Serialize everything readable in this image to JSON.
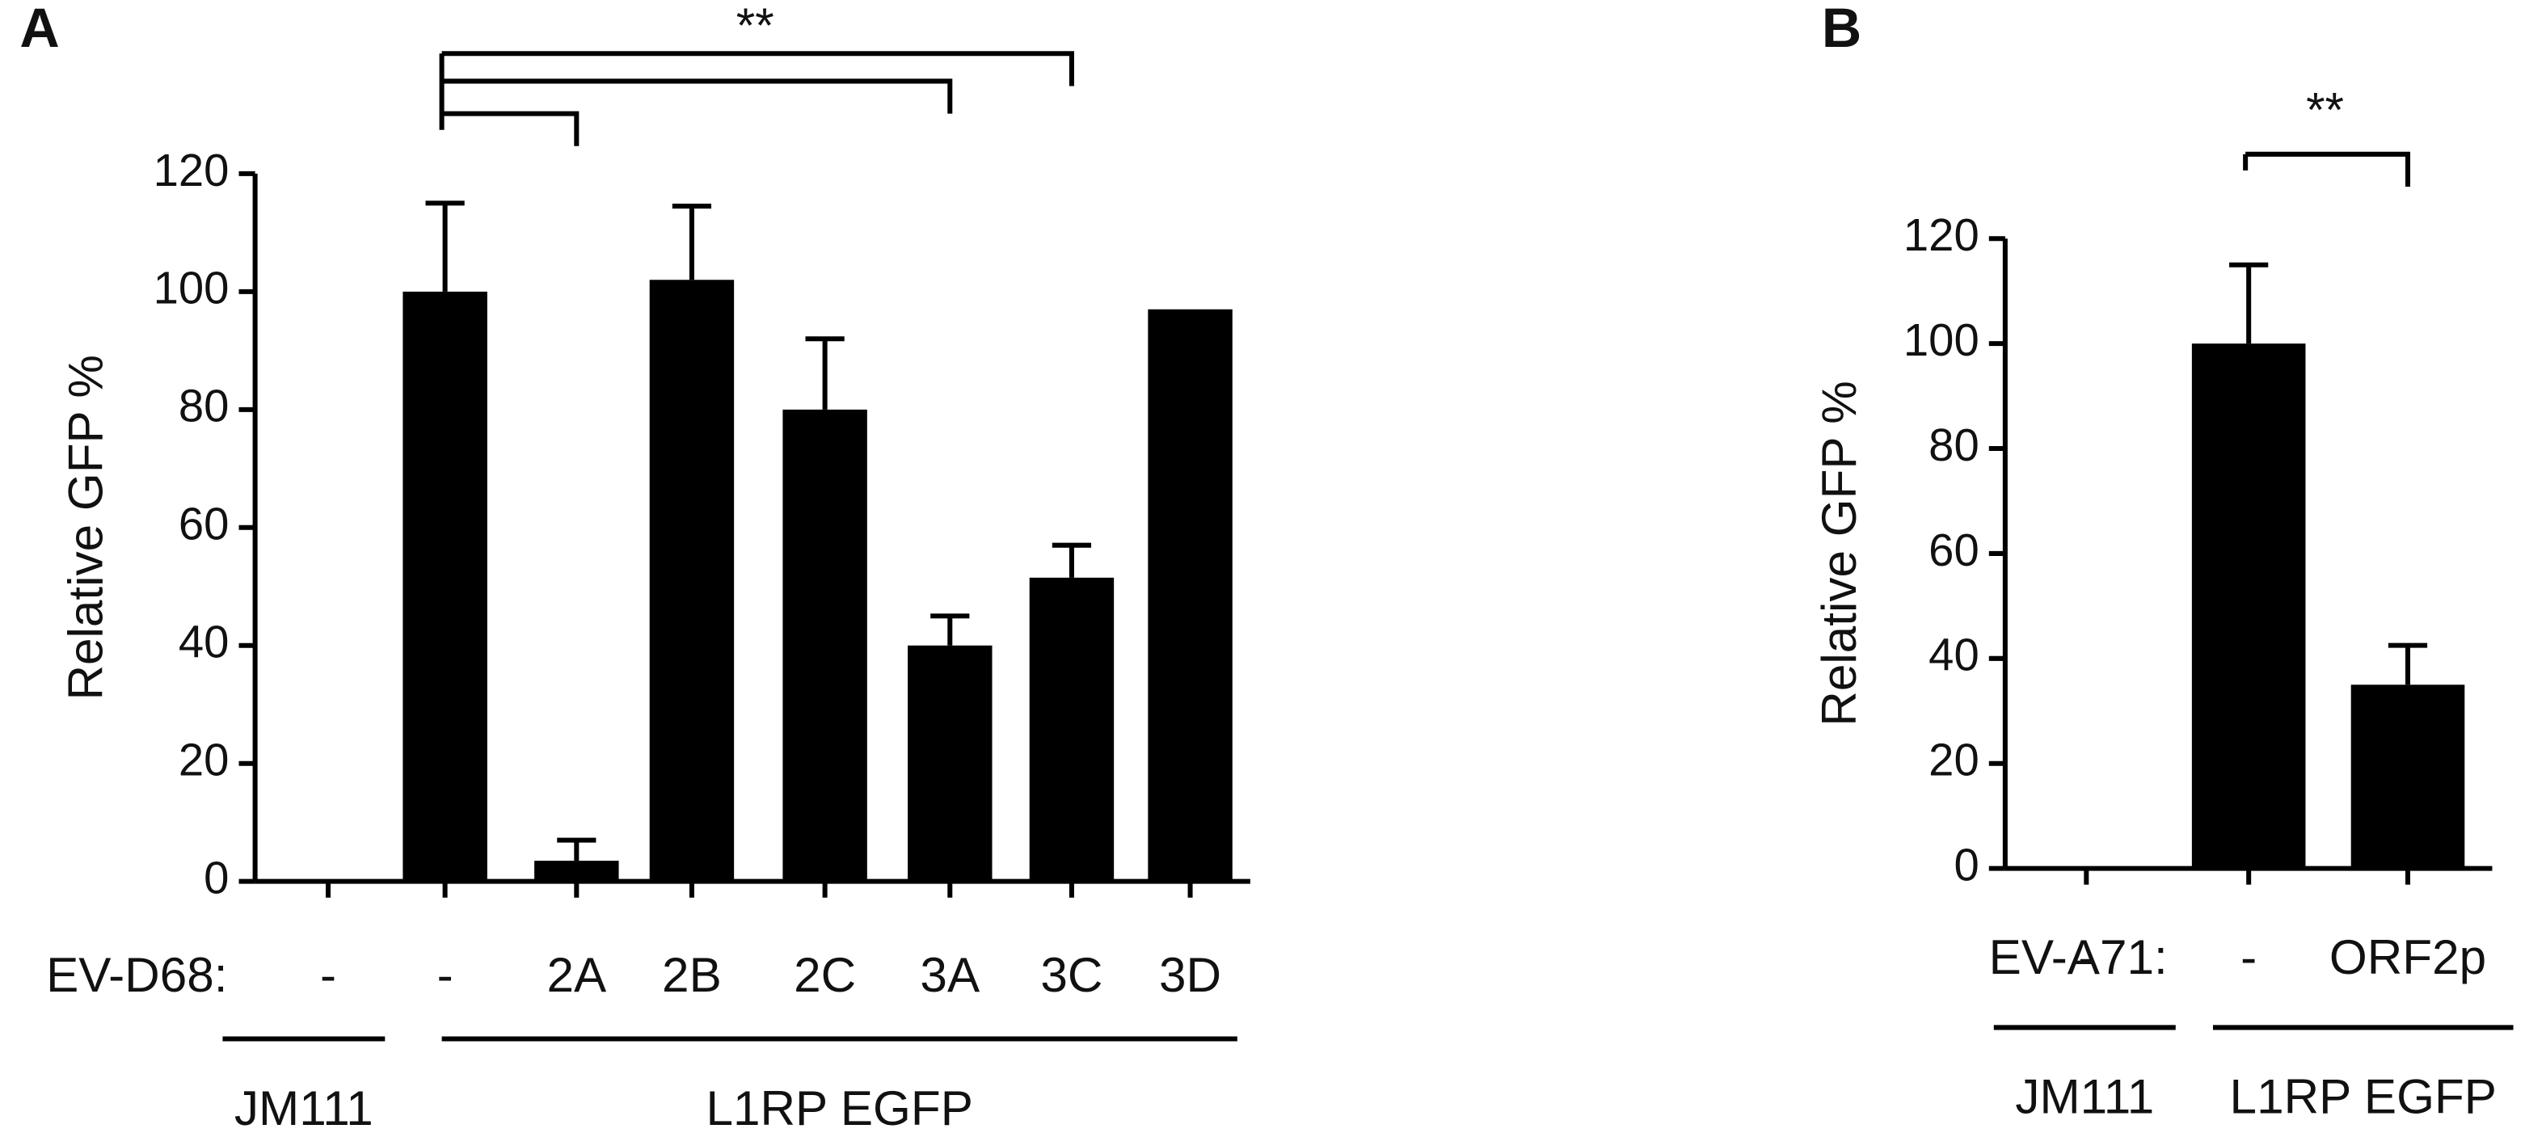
{
  "chart_data": [
    {
      "type": "bar",
      "panel_label": "A",
      "y_label": "Relative GFP %",
      "row_label": "EV-D68:",
      "categories": [
        "-",
        "-",
        "2A",
        "2B",
        "2C",
        "3A",
        "3C",
        "3D"
      ],
      "values": [
        0,
        100,
        3.5,
        102,
        80,
        40,
        51.5,
        97
      ],
      "errors": [
        0,
        15,
        3.5,
        12.5,
        12,
        5,
        5.5,
        0
      ],
      "groups": [
        "JM111",
        "L1RP EGFP"
      ],
      "significance": "**",
      "color": "#000000",
      "ylim": [
        0,
        120
      ],
      "yticks": [
        0,
        20,
        40,
        60,
        80,
        100,
        120
      ]
    },
    {
      "type": "bar",
      "panel_label": "B",
      "y_label": "Relative GFP %",
      "row_label": "EV-A71:",
      "categories": [
        "-",
        "-",
        "ORF2p"
      ],
      "values": [
        0,
        100,
        35
      ],
      "errors": [
        0,
        15,
        7.5
      ],
      "groups": [
        "JM111",
        "L1RP EGFP"
      ],
      "significance": "**",
      "color": "#000000",
      "ylim": [
        0,
        120
      ],
      "yticks": [
        0,
        20,
        40,
        60,
        80,
        100,
        120
      ]
    }
  ]
}
